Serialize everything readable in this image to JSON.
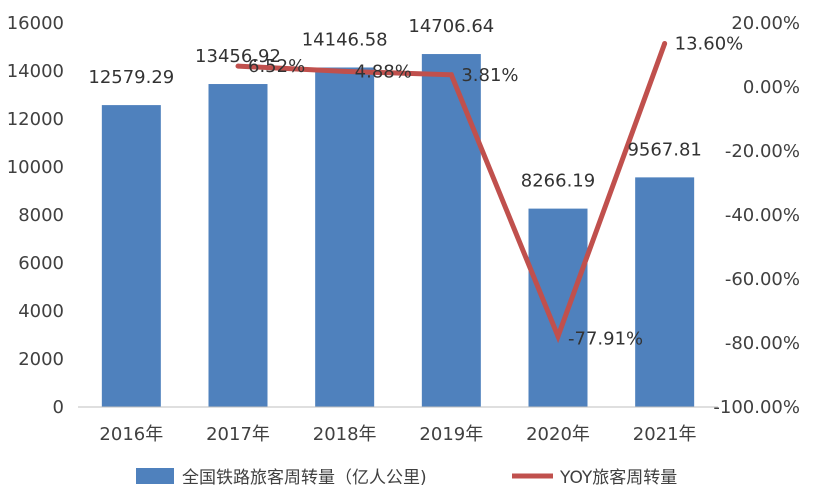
{
  "chart_data": {
    "type": "bar",
    "categories": [
      "2016年",
      "2017年",
      "2018年",
      "2019年",
      "2020年",
      "2021年"
    ],
    "series": [
      {
        "name": "全国铁路旅客周转量（亿人公里)",
        "type": "bar",
        "axis": "left",
        "color": "#4f81bd",
        "values": [
          12579.29,
          13456.92,
          14146.58,
          14706.64,
          8266.19,
          9567.81
        ],
        "labels": [
          "12579.29",
          "13456.92",
          "14146.58",
          "14706.64",
          "8266.19",
          "9567.81"
        ]
      },
      {
        "name": "YOY旅客周转量",
        "type": "line",
        "axis": "right",
        "color": "#c0504d",
        "values": [
          null,
          6.52,
          4.88,
          3.81,
          -77.91,
          13.6
        ],
        "labels": [
          "",
          "6.52%",
          "4.88%",
          "3.81%",
          "-77.91%",
          "13.60%"
        ]
      }
    ],
    "y_left": {
      "ylim": [
        0,
        16000
      ],
      "ticks": [
        "0",
        "2000",
        "4000",
        "6000",
        "8000",
        "10000",
        "12000",
        "14000",
        "16000"
      ]
    },
    "y_right": {
      "ylim": [
        -100,
        20
      ],
      "ticks": [
        "-100.00%",
        "-80.00%",
        "-60.00%",
        "-40.00%",
        "-20.00%",
        "0.00%",
        "20.00%"
      ]
    },
    "grid": false,
    "legend": "bottom"
  }
}
